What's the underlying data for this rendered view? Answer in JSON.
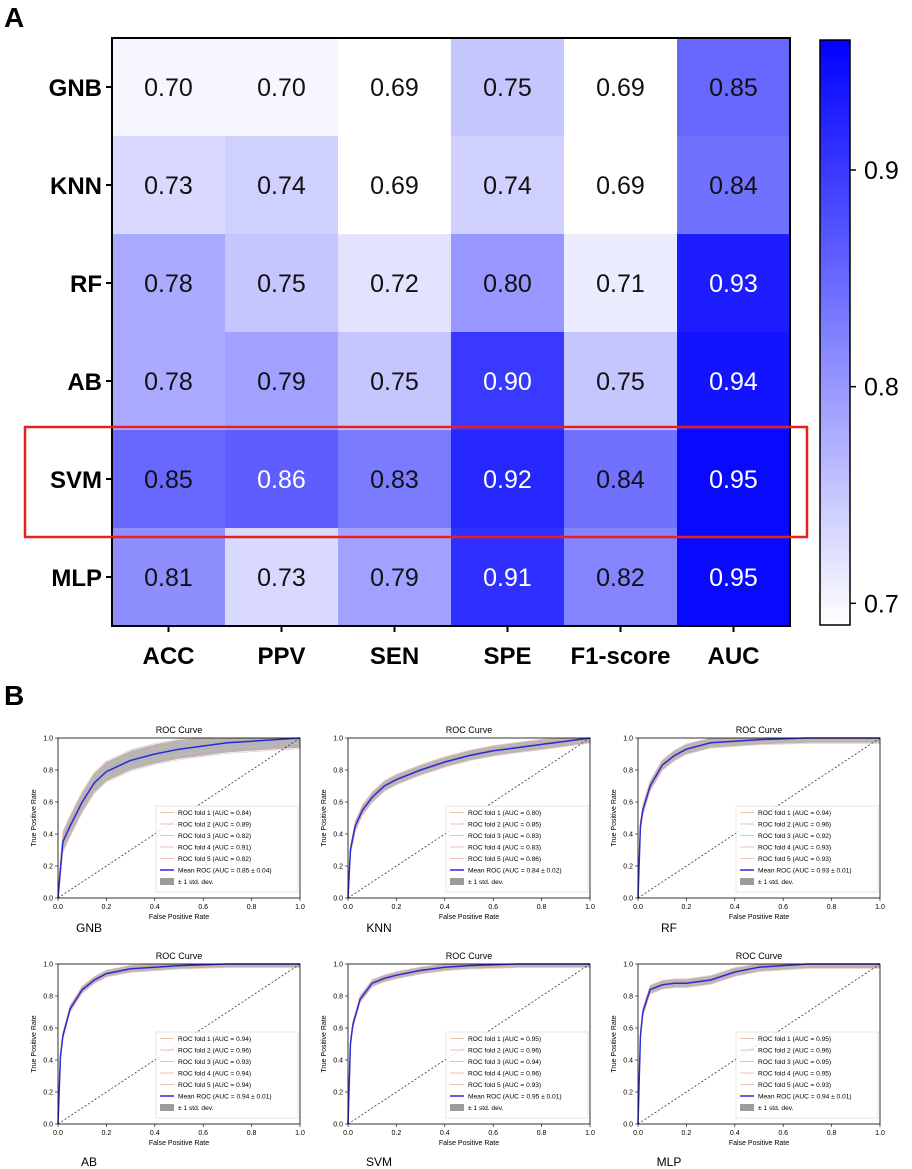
{
  "panel_a_label": "A",
  "panel_b_label": "B",
  "chart_data": [
    {
      "type": "heatmap",
      "title": "",
      "rows": [
        "GNB",
        "KNN",
        "RF",
        "AB",
        "SVM",
        "MLP"
      ],
      "columns": [
        "ACC",
        "PPV",
        "SEN",
        "SPE",
        "F1-score",
        "AUC"
      ],
      "values": [
        [
          0.7,
          0.7,
          0.69,
          0.75,
          0.69,
          0.85
        ],
        [
          0.73,
          0.74,
          0.69,
          0.74,
          0.69,
          0.84
        ],
        [
          0.78,
          0.75,
          0.72,
          0.8,
          0.71,
          0.93
        ],
        [
          0.78,
          0.79,
          0.75,
          0.9,
          0.75,
          0.94
        ],
        [
          0.85,
          0.86,
          0.83,
          0.92,
          0.84,
          0.95
        ],
        [
          0.81,
          0.73,
          0.79,
          0.91,
          0.82,
          0.95
        ]
      ],
      "value_labels": [
        [
          "0.70",
          "0.70",
          "0.69",
          "0.75",
          "0.69",
          "0.85"
        ],
        [
          "0.73",
          "0.74",
          "0.69",
          "0.74",
          "0.69",
          "0.84"
        ],
        [
          "0.78",
          "0.75",
          "0.72",
          "0.80",
          "0.71",
          "0.93"
        ],
        [
          "0.78",
          "0.79",
          "0.75",
          "0.90",
          "0.75",
          "0.94"
        ],
        [
          "0.85",
          "0.86",
          "0.83",
          "0.92",
          "0.84",
          "0.95"
        ],
        [
          "0.81",
          "0.73",
          "0.79",
          "0.91",
          "0.82",
          "0.95"
        ]
      ],
      "colorbar": {
        "range": [
          0.69,
          0.96
        ],
        "ticks": [
          0.7,
          0.8,
          0.9
        ],
        "tick_labels": [
          "0.7",
          "0.8",
          "0.9"
        ],
        "low_color": "#ffffff",
        "high_color": "#0000ff"
      },
      "highlighted_row": "SVM",
      "highlight_color": "#e8201f"
    },
    {
      "type": "line",
      "model": "GNB",
      "title": "ROC Curve",
      "xlabel": "False Positive Rate",
      "ylabel": "True Positive Rate",
      "caption": "GNB",
      "xlim": [
        0,
        1
      ],
      "ylim": [
        0,
        1
      ],
      "ticks": [
        "0.0",
        "0.2",
        "0.4",
        "0.6",
        "0.8",
        "1.0"
      ],
      "x": [
        0,
        0.02,
        0.05,
        0.1,
        0.15,
        0.2,
        0.3,
        0.4,
        0.5,
        0.6,
        0.7,
        0.8,
        0.9,
        1.0
      ],
      "mean_tpr": [
        0,
        0.35,
        0.45,
        0.6,
        0.72,
        0.79,
        0.86,
        0.9,
        0.93,
        0.95,
        0.97,
        0.98,
        0.99,
        1.0
      ],
      "band": 0.06,
      "legend": [
        "ROC fold 1 (AUC = 0.84)",
        "ROC fold 2 (AUC = 0.89)",
        "ROC fold 3 (AUC = 0.82)",
        "ROC fold 4 (AUC = 0.91)",
        "ROC fold 5 (AUC = 0.82)",
        "Mean ROC (AUC = 0.85 ± 0.04)",
        "± 1 std. dev."
      ]
    },
    {
      "type": "line",
      "model": "KNN",
      "title": "ROC Curve",
      "xlabel": "False Positive Rate",
      "ylabel": "True Positive Rate",
      "caption": "KNN",
      "xlim": [
        0,
        1
      ],
      "ylim": [
        0,
        1
      ],
      "ticks": [
        "0.0",
        "0.2",
        "0.4",
        "0.6",
        "0.8",
        "1.0"
      ],
      "x": [
        0,
        0.01,
        0.03,
        0.06,
        0.1,
        0.15,
        0.2,
        0.3,
        0.4,
        0.5,
        0.6,
        0.7,
        0.8,
        0.9,
        1.0
      ],
      "mean_tpr": [
        0,
        0.3,
        0.45,
        0.55,
        0.63,
        0.7,
        0.74,
        0.8,
        0.85,
        0.89,
        0.92,
        0.94,
        0.96,
        0.98,
        1.0
      ],
      "band": 0.03,
      "legend": [
        "ROC fold 1 (AUC = 0.80)",
        "ROC fold 2 (AUC = 0.85)",
        "ROC fold 3 (AUC = 0.83)",
        "ROC fold 4 (AUC = 0.83)",
        "ROC fold 5 (AUC = 0.86)",
        "Mean ROC (AUC = 0.84 ± 0.02)",
        "± 1 std. dev."
      ]
    },
    {
      "type": "line",
      "model": "RF",
      "title": "ROC Curve",
      "xlabel": "False Positive Rate",
      "ylabel": "True Positive Rate",
      "caption": "RF",
      "xlim": [
        0,
        1
      ],
      "ylim": [
        0,
        1
      ],
      "ticks": [
        "0.0",
        "0.2",
        "0.4",
        "0.6",
        "0.8",
        "1.0"
      ],
      "x": [
        0,
        0.01,
        0.02,
        0.05,
        0.1,
        0.15,
        0.2,
        0.3,
        0.4,
        0.5,
        0.7,
        1.0
      ],
      "mean_tpr": [
        0,
        0.45,
        0.55,
        0.7,
        0.83,
        0.89,
        0.93,
        0.97,
        0.98,
        0.99,
        1.0,
        1.0
      ],
      "band": 0.03,
      "legend": [
        "ROC fold 1 (AUC = 0.94)",
        "ROC fold 2 (AUC = 0.96)",
        "ROC fold 3 (AUC = 0.92)",
        "ROC fold 4 (AUC = 0.93)",
        "ROC fold 5 (AUC = 0.93)",
        "Mean ROC (AUC = 0.93 ± 0.01)",
        "± 1 std. dev."
      ]
    },
    {
      "type": "line",
      "model": "AB",
      "title": "ROC Curve",
      "xlabel": "False Positive Rate",
      "ylabel": "True Positive Rate",
      "caption": "AB",
      "xlim": [
        0,
        1
      ],
      "ylim": [
        0,
        1
      ],
      "ticks": [
        "0.0",
        "0.2",
        "0.4",
        "0.6",
        "0.8",
        "1.0"
      ],
      "x": [
        0,
        0.01,
        0.02,
        0.05,
        0.1,
        0.15,
        0.2,
        0.3,
        0.4,
        0.5,
        0.7,
        1.0
      ],
      "mean_tpr": [
        0,
        0.42,
        0.55,
        0.72,
        0.84,
        0.9,
        0.94,
        0.97,
        0.98,
        0.99,
        1.0,
        1.0
      ],
      "band": 0.02,
      "legend": [
        "ROC fold 1 (AUC = 0.94)",
        "ROC fold 2 (AUC = 0.96)",
        "ROC fold 3 (AUC = 0.93)",
        "ROC fold 4 (AUC = 0.94)",
        "ROC fold 5 (AUC = 0.94)",
        "Mean ROC (AUC = 0.94 ± 0.01)",
        "± 1 std. dev."
      ]
    },
    {
      "type": "line",
      "model": "SVM",
      "title": "ROC Curve",
      "xlabel": "False Positive Rate",
      "ylabel": "True Positive Rate",
      "caption": "SVM",
      "xlim": [
        0,
        1
      ],
      "ylim": [
        0,
        1
      ],
      "ticks": [
        "0.0",
        "0.2",
        "0.4",
        "0.6",
        "0.8",
        "1.0"
      ],
      "x": [
        0,
        0.01,
        0.02,
        0.05,
        0.1,
        0.15,
        0.2,
        0.3,
        0.4,
        0.5,
        0.7,
        1.0
      ],
      "mean_tpr": [
        0,
        0.5,
        0.62,
        0.78,
        0.88,
        0.91,
        0.93,
        0.96,
        0.98,
        0.99,
        1.0,
        1.0
      ],
      "band": 0.02,
      "legend": [
        "ROC fold 1 (AUC = 0.95)",
        "ROC fold 2 (AUC = 0.96)",
        "ROC fold 3 (AUC = 0.94)",
        "ROC fold 4 (AUC = 0.96)",
        "ROC fold 5 (AUC = 0.93)",
        "Mean ROC (AUC = 0.95 ± 0.01)",
        "± 1 std. dev."
      ]
    },
    {
      "type": "line",
      "model": "MLP",
      "title": "ROC Curve",
      "xlabel": "False Positive Rate",
      "ylabel": "True Positive Rate",
      "caption": "MLP",
      "xlim": [
        0,
        1
      ],
      "ylim": [
        0,
        1
      ],
      "ticks": [
        "0.0",
        "0.2",
        "0.4",
        "0.6",
        "0.8",
        "1.0"
      ],
      "x": [
        0,
        0.01,
        0.02,
        0.05,
        0.1,
        0.15,
        0.2,
        0.3,
        0.4,
        0.5,
        0.7,
        1.0
      ],
      "mean_tpr": [
        0,
        0.55,
        0.7,
        0.84,
        0.87,
        0.88,
        0.88,
        0.9,
        0.95,
        0.98,
        1.0,
        1.0
      ],
      "band": 0.025,
      "legend": [
        "ROC fold 1 (AUC = 0.95)",
        "ROC fold 2 (AUC = 0.96)",
        "ROC fold 3 (AUC = 0.95)",
        "ROC fold 4 (AUC = 0.95)",
        "ROC fold 5 (AUC = 0.93)",
        "Mean ROC (AUC = 0.94 ± 0.01)",
        "± 1 std. dev."
      ]
    }
  ]
}
